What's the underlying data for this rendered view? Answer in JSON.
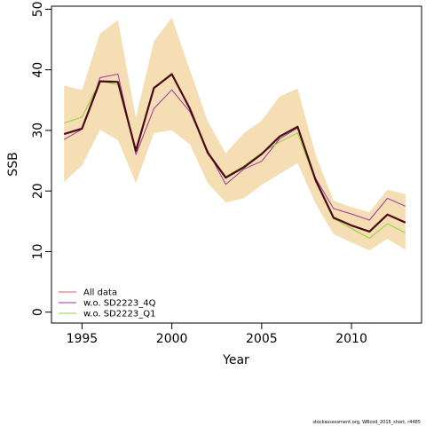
{
  "chart_data": {
    "type": "line",
    "xlabel": "Year",
    "ylabel": "SSB",
    "xlim": [
      1993.3,
      2013.9
    ],
    "ylim": [
      -1.8,
      50.5
    ],
    "x_ticks": [
      1995,
      2000,
      2005,
      2010
    ],
    "y_ticks": [
      0,
      10,
      20,
      30,
      40,
      50
    ],
    "grid": false,
    "legend_placement": "bottom-left",
    "x": [
      1994,
      1995,
      1996,
      1997,
      1998,
      1999,
      2000,
      2001,
      2002,
      2003,
      2004,
      2005,
      2006,
      2007,
      2008,
      2009,
      2010,
      2011,
      2012,
      2013
    ],
    "band": {
      "color": "#f5deb3",
      "lower": [
        21.5,
        24.2,
        30.1,
        28.4,
        21.3,
        29.6,
        30.0,
        27.7,
        21.3,
        18.1,
        18.8,
        21.0,
        22.8,
        24.6,
        17.9,
        12.9,
        11.5,
        10.2,
        12.1,
        10.3
      ],
      "upper": [
        37.4,
        36.7,
        46.0,
        48.2,
        32.1,
        44.7,
        48.6,
        40.0,
        31.5,
        26.2,
        29.5,
        31.6,
        35.6,
        36.9,
        26.0,
        18.4,
        17.3,
        16.5,
        20.2,
        19.5
      ]
    },
    "series": [
      {
        "name": "All data",
        "color": "#e6575d",
        "width": 1,
        "values": [
          29.3,
          30.4,
          38.0,
          38.0,
          26.6,
          37.0,
          39.3,
          33.6,
          26.3,
          22.2,
          23.9,
          26.1,
          29.0,
          30.6,
          21.8,
          15.6,
          14.3,
          13.3,
          16.1,
          14.8
        ]
      },
      {
        "name": "w.o. SD2223_4Q",
        "color": "#9a36a3",
        "width": 1,
        "values": [
          28.5,
          30.2,
          38.7,
          39.3,
          26.0,
          33.6,
          36.7,
          33.1,
          26.6,
          21.1,
          23.6,
          24.9,
          28.6,
          30.4,
          22.1,
          17.1,
          16.2,
          15.2,
          18.8,
          17.5
        ]
      },
      {
        "name": "w.o. SD2223_Q1",
        "color": "#8fd13c",
        "width": 1,
        "values": [
          31.2,
          32.2,
          38.2,
          37.5,
          26.9,
          37.2,
          39.1,
          33.7,
          26.2,
          22.4,
          24.1,
          26.3,
          28.1,
          29.6,
          21.6,
          15.4,
          13.8,
          12.2,
          14.6,
          13.1
        ]
      },
      {
        "name": "",
        "color": "#4a0a14",
        "width": 2.2,
        "values": [
          29.4,
          30.3,
          38.1,
          38.0,
          26.6,
          37.0,
          39.3,
          33.6,
          26.3,
          22.2,
          23.9,
          26.1,
          29.0,
          30.6,
          21.8,
          15.6,
          14.3,
          13.3,
          16.1,
          14.8
        ]
      }
    ]
  },
  "footer": "stockassessment.org, WBcod_2015_short, r4485"
}
